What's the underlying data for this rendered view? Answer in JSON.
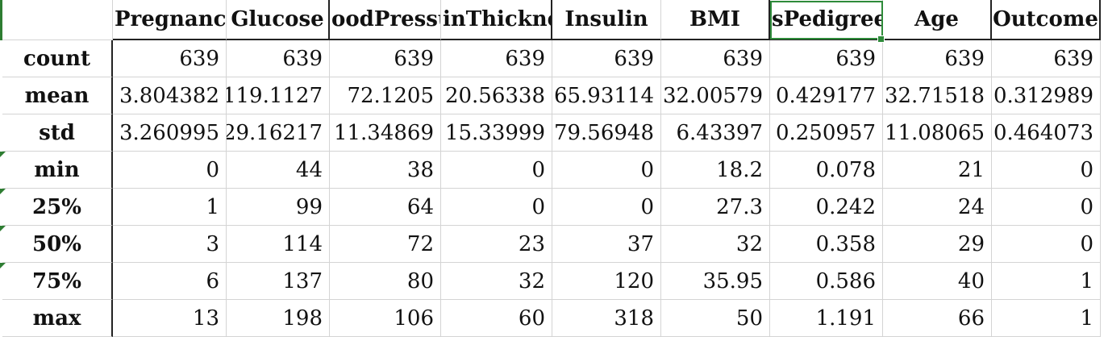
{
  "columns": [
    "Pregnancies",
    "Glucose",
    "BloodPressure",
    "SkinThickness",
    "Insulin",
    "BMI",
    "DiabetesPedigreeFunction",
    "Age",
    "Outcome"
  ],
  "column_display": [
    "Pregnancie:",
    "Glucose",
    "oodPressu",
    "inThickne",
    "Insulin",
    "BMI",
    "sPedigreeF",
    "Age",
    "Outcome"
  ],
  "rows": [
    {
      "label": "count",
      "values": [
        "639",
        "639",
        "639",
        "639",
        "639",
        "639",
        "639",
        "639",
        "639"
      ]
    },
    {
      "label": "mean",
      "values": [
        "3.804382",
        "119.1127",
        "72.1205",
        "20.56338",
        "65.93114",
        "32.00579",
        "0.429177",
        "32.71518",
        "0.312989"
      ]
    },
    {
      "label": "std",
      "values": [
        "3.260995",
        "29.16217",
        "11.34869",
        "15.33999",
        "79.56948",
        "6.43397",
        "0.250957",
        "11.08065",
        "0.464073"
      ]
    },
    {
      "label": "min",
      "values": [
        "0",
        "44",
        "38",
        "0",
        "0",
        "18.2",
        "0.078",
        "21",
        "0"
      ]
    },
    {
      "label": "25%",
      "values": [
        "1",
        "99",
        "64",
        "0",
        "0",
        "27.3",
        "0.242",
        "24",
        "0"
      ]
    },
    {
      "label": "50%",
      "values": [
        "3",
        "114",
        "72",
        "23",
        "37",
        "32",
        "0.358",
        "29",
        "0"
      ]
    },
    {
      "label": "75%",
      "values": [
        "6",
        "137",
        "80",
        "32",
        "120",
        "35.95",
        "0.586",
        "40",
        "1"
      ]
    },
    {
      "label": "max",
      "values": [
        "13",
        "198",
        "106",
        "60",
        "318",
        "50",
        "1.191",
        "66",
        "1"
      ]
    }
  ],
  "selected_cell": "DiabetesPedigreeFunction",
  "colors": {
    "selection": "#2e8b3a",
    "gridline": "#d4d4d4",
    "border": "#222222"
  }
}
